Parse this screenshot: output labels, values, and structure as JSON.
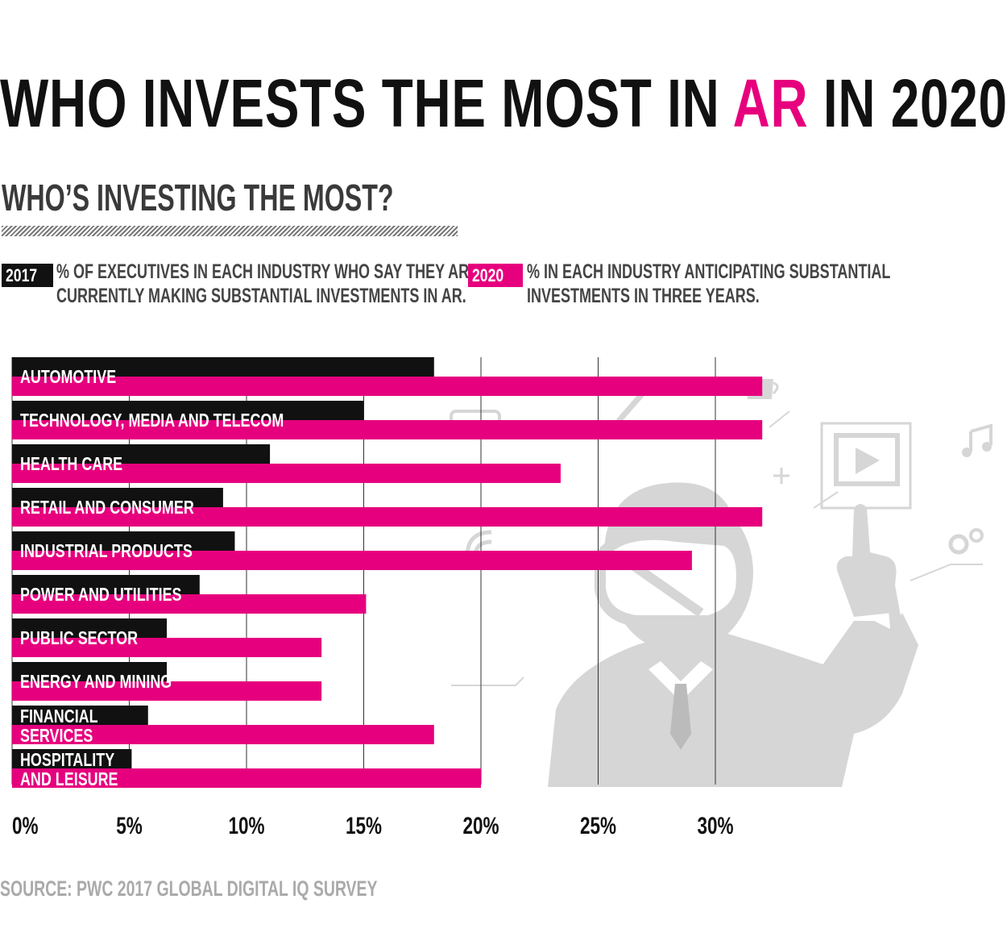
{
  "title": {
    "before": "WHO INVESTS THE MOST IN ",
    "highlight": "AR",
    "after": " IN 2020?"
  },
  "subtitle": "WHO’S INVESTING THE MOST?",
  "legend": {
    "series_2017": {
      "label": "2017",
      "line1": "% OF EXECUTIVES IN EACH INDUSTRY WHO SAY THEY ARE",
      "line2": "CURRENTLY MAKING SUBSTANTIAL INVESTMENTS IN AR."
    },
    "series_2020": {
      "label": "2020",
      "line1": "% IN EACH INDUSTRY ANTICIPATING SUBSTANTIAL",
      "line2": "INVESTMENTS IN THREE YEARS."
    }
  },
  "colors": {
    "s2017": "#111111",
    "s2020": "#e6007e",
    "highlight": "#e6007e"
  },
  "source": "SOURCE: PWC 2017 GLOBAL DIGITAL IQ SURVEY",
  "chart_data": {
    "type": "bar",
    "orientation": "horizontal",
    "categories": [
      [
        "AUTOMOTIVE"
      ],
      [
        "TECHNOLOGY, MEDIA AND TELECOM"
      ],
      [
        "HEALTH CARE"
      ],
      [
        "RETAIL AND CONSUMER"
      ],
      [
        "INDUSTRIAL PRODUCTS"
      ],
      [
        "POWER AND UTILITIES"
      ],
      [
        "PUBLIC SECTOR"
      ],
      [
        "ENERGY AND MINING"
      ],
      [
        "FINANCIAL",
        "SERVICES"
      ],
      [
        "HOSPITALITY",
        "AND LEISURE"
      ]
    ],
    "series": [
      {
        "name": "2017",
        "values": [
          18,
          15,
          11,
          9,
          9.5,
          8,
          6.6,
          6.6,
          5.8,
          5.1
        ]
      },
      {
        "name": "2020",
        "values": [
          32,
          32,
          23.4,
          32,
          29,
          15.1,
          13.2,
          13.2,
          18,
          20
        ]
      }
    ],
    "xlim": [
      0,
      35
    ],
    "xticks": [
      0,
      5,
      10,
      15,
      20,
      25,
      30
    ],
    "xtick_labels": [
      "0%",
      "5%",
      "10%",
      "15%",
      "20%",
      "25%",
      "30%"
    ],
    "grid": true
  }
}
